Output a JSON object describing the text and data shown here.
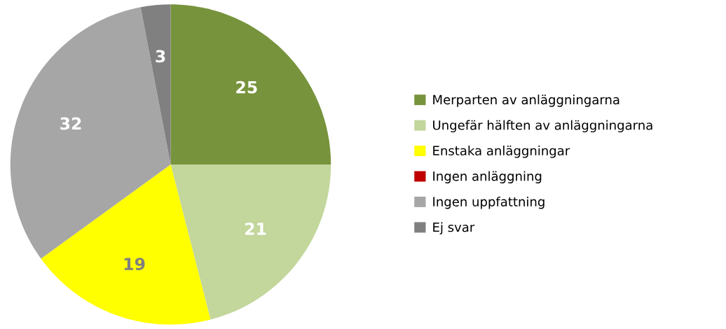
{
  "chart_data": {
    "type": "pie",
    "categories": [
      "Merparten av anläggningarna",
      "Ungefär hälften av anläggningarna",
      "Enstaka anläggningar",
      "Ingen anläggning",
      "Ingen uppfattning",
      "Ej svar"
    ],
    "values": [
      25,
      21,
      19,
      0,
      32,
      3
    ],
    "colors": [
      "#77933c",
      "#c3d69b",
      "#ffff00",
      "#c00000",
      "#a6a6a6",
      "#808080"
    ],
    "value_labels": [
      "25",
      "21",
      "19",
      null,
      "32",
      "3"
    ],
    "legend": "right"
  }
}
